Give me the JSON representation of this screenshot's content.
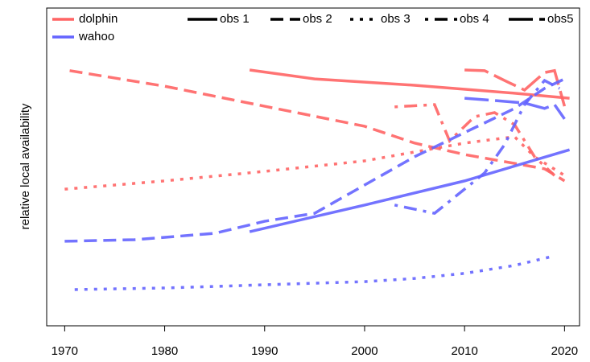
{
  "chart_data": {
    "type": "line",
    "y_label": "relative local availability",
    "xlim": [
      1968.2,
      2021.5
    ],
    "xticks": [
      1970,
      1980,
      1990,
      2000,
      2010,
      2020
    ],
    "ylim": [
      0,
      1
    ],
    "legend": {
      "species": [
        {
          "name": "dolphin",
          "color": "#ff6464"
        },
        {
          "name": "wahoo",
          "color": "#6464ff"
        }
      ],
      "linetypes": [
        {
          "name": "obs 1",
          "linetype": "solid"
        },
        {
          "name": "obs 2",
          "linetype": "dashed"
        },
        {
          "name": "obs 3",
          "linetype": "dotted"
        },
        {
          "name": "obs 4",
          "linetype": "dotdash"
        },
        {
          "name": "obs5",
          "linetype": "longdash"
        }
      ]
    },
    "series": [
      {
        "color": "#ff6464",
        "linetype": "solid",
        "x": [
          1988.5,
          1995,
          2005,
          2015,
          2020.5
        ],
        "values": [
          0.805,
          0.777,
          0.757,
          0.732,
          0.716
        ]
      },
      {
        "color": "#ff6464",
        "linetype": "dashed",
        "x": [
          1970.5,
          1980,
          1990,
          2000,
          2005,
          2010,
          2015,
          2018,
          2020
        ],
        "values": [
          0.803,
          0.754,
          0.691,
          0.628,
          0.575,
          0.539,
          0.511,
          0.494,
          0.456
        ]
      },
      {
        "color": "#ff6464",
        "linetype": "dotted",
        "x": [
          1970,
          1980,
          1990,
          2000,
          2010,
          2015,
          2017,
          2020
        ],
        "values": [
          0.43,
          0.456,
          0.486,
          0.519,
          0.575,
          0.595,
          0.532,
          0.473
        ]
      },
      {
        "color": "#ff6464",
        "linetype": "dotdash",
        "x": [
          2003,
          2007,
          2008.5,
          2011,
          2013,
          2015,
          2017,
          2019
        ],
        "values": [
          0.689,
          0.696,
          0.582,
          0.658,
          0.671,
          0.633,
          0.532,
          0.473
        ]
      },
      {
        "color": "#ff6464",
        "linetype": "longdash",
        "x": [
          2010,
          2012,
          2014,
          2016,
          2018,
          2019,
          2020
        ],
        "values": [
          0.805,
          0.803,
          0.772,
          0.742,
          0.797,
          0.803,
          0.691
        ]
      },
      {
        "color": "#6464ff",
        "linetype": "solid",
        "x": [
          1988.5,
          2000,
          2010,
          2020.5
        ],
        "values": [
          0.296,
          0.38,
          0.456,
          0.554
        ]
      },
      {
        "color": "#6464ff",
        "linetype": "dashed",
        "x": [
          1970,
          1977,
          1985,
          1990,
          1995,
          2000,
          2005,
          2010,
          2015,
          2018,
          2020
        ],
        "values": [
          0.266,
          0.271,
          0.291,
          0.329,
          0.354,
          0.443,
          0.532,
          0.608,
          0.684,
          0.747,
          0.777
        ]
      },
      {
        "color": "#6464ff",
        "linetype": "dotted",
        "x": [
          1971,
          1980,
          1990,
          2000,
          2005,
          2010,
          2015,
          2019
        ],
        "values": [
          0.114,
          0.119,
          0.129,
          0.139,
          0.149,
          0.165,
          0.19,
          0.22
        ]
      },
      {
        "color": "#6464ff",
        "linetype": "dotdash",
        "x": [
          2003,
          2007,
          2010,
          2012,
          2014,
          2016,
          2018,
          2019.5
        ],
        "values": [
          0.38,
          0.354,
          0.43,
          0.481,
          0.57,
          0.696,
          0.772,
          0.747
        ]
      },
      {
        "color": "#6464ff",
        "linetype": "longdash",
        "x": [
          2010,
          2013,
          2016,
          2018,
          2019,
          2020
        ],
        "values": [
          0.716,
          0.709,
          0.701,
          0.684,
          0.696,
          0.651
        ]
      }
    ]
  }
}
